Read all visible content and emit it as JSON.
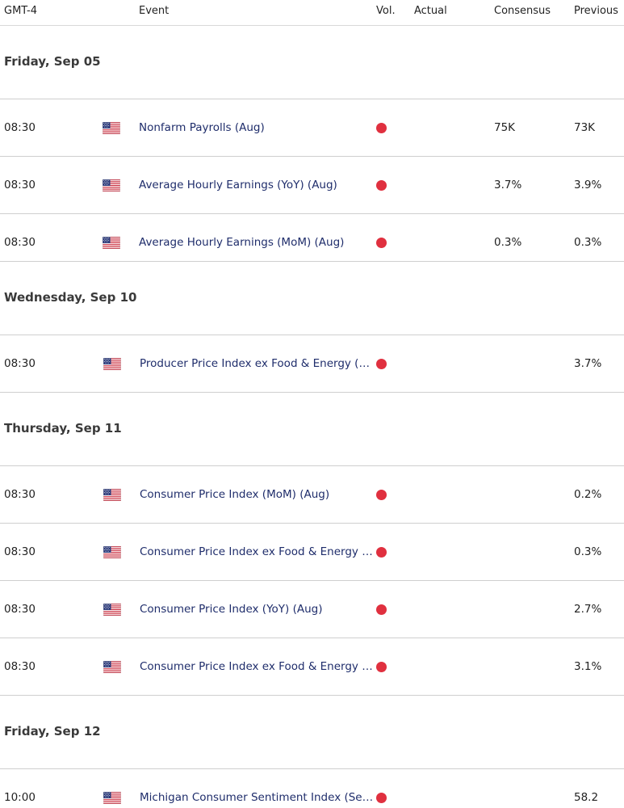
{
  "header": {
    "timezone": "GMT-4",
    "event": "Event",
    "vol": "Vol.",
    "actual": "Actual",
    "consensus": "Consensus",
    "previous": "Previous"
  },
  "colors": {
    "vol_high": "#e0303f",
    "event_text": "#1f2d6b"
  },
  "days": [
    {
      "title": "Friday, Sep 05",
      "events": [
        {
          "time": "08:30",
          "country_icon": "us-flag-icon",
          "event": "Nonfarm Payrolls (Aug)",
          "vol": "high",
          "actual": "",
          "consensus": "75K",
          "previous": "73K"
        },
        {
          "time": "08:30",
          "country_icon": "us-flag-icon",
          "event": "Average Hourly Earnings (YoY) (Aug)",
          "vol": "high",
          "actual": "",
          "consensus": "3.7%",
          "previous": "3.9%"
        },
        {
          "time": "08:30",
          "country_icon": "us-flag-icon",
          "event": "Average Hourly Earnings (MoM) (Aug)",
          "vol": "high",
          "actual": "",
          "consensus": "0.3%",
          "previous": "0.3%"
        }
      ]
    },
    {
      "title": "Wednesday, Sep 10",
      "events": [
        {
          "time": "08:30",
          "country_icon": "us-flag-icon",
          "event": "Producer Price Index ex Food & Energy (Y…",
          "vol": "high",
          "actual": "",
          "consensus": "",
          "previous": "3.7%"
        }
      ]
    },
    {
      "title": "Thursday, Sep 11",
      "events": [
        {
          "time": "08:30",
          "country_icon": "us-flag-icon",
          "event": "Consumer Price Index (MoM) (Aug)",
          "vol": "high",
          "actual": "",
          "consensus": "",
          "previous": "0.2%"
        },
        {
          "time": "08:30",
          "country_icon": "us-flag-icon",
          "event": "Consumer Price Index ex Food & Energy (…",
          "vol": "high",
          "actual": "",
          "consensus": "",
          "previous": "0.3%"
        },
        {
          "time": "08:30",
          "country_icon": "us-flag-icon",
          "event": "Consumer Price Index (YoY) (Aug)",
          "vol": "high",
          "actual": "",
          "consensus": "",
          "previous": "2.7%"
        },
        {
          "time": "08:30",
          "country_icon": "us-flag-icon",
          "event": "Consumer Price Index ex Food & Energy (…",
          "vol": "high",
          "actual": "",
          "consensus": "",
          "previous": "3.1%"
        }
      ]
    },
    {
      "title": "Friday, Sep 12",
      "events": [
        {
          "time": "10:00",
          "country_icon": "us-flag-icon",
          "event": "Michigan Consumer Sentiment Index (Se…",
          "vol": "high",
          "actual": "",
          "consensus": "",
          "previous": "58.2"
        }
      ]
    }
  ]
}
